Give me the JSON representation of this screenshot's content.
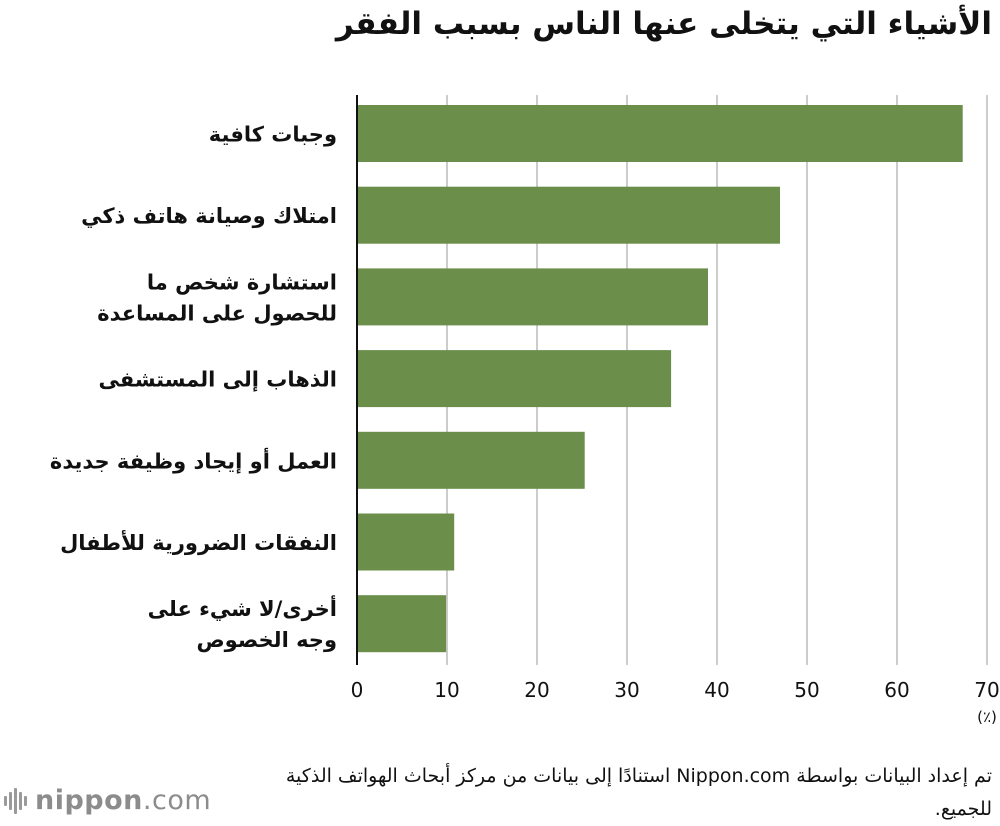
{
  "chart_data": {
    "type": "bar",
    "orientation": "horizontal",
    "title": "الأشياء التي يتخلى عنها الناس بسبب الفقر",
    "categories": [
      [
        "وجبات كافية"
      ],
      [
        "امتلاك وصيانة هاتف ذكي"
      ],
      [
        "استشارة شخص ما",
        "للحصول على المساعدة"
      ],
      [
        "الذهاب إلى المستشفى"
      ],
      [
        "العمل أو إيجاد وظيفة جديدة"
      ],
      [
        "النفقات الضرورية للأطفال"
      ],
      [
        "أخرى/لا شيء على",
        "وجه الخصوص"
      ]
    ],
    "values": [
      67.3,
      47.0,
      39.0,
      34.9,
      25.3,
      10.8,
      9.9
    ],
    "xlim": [
      0,
      70
    ],
    "xticks": [
      0,
      10,
      20,
      30,
      40,
      50,
      60,
      70
    ],
    "xunit": "(٪)",
    "grid": true,
    "bar_color": "#6b8e4a",
    "grid_color": "#cccccc"
  },
  "source_note": "تم إعداد البيانات بواسطة Nippon.com استنادًا إلى بيانات من مركز أبحاث الهواتف الذكية للجميع.",
  "logo": {
    "bold": "nippon",
    "light": ".com"
  }
}
